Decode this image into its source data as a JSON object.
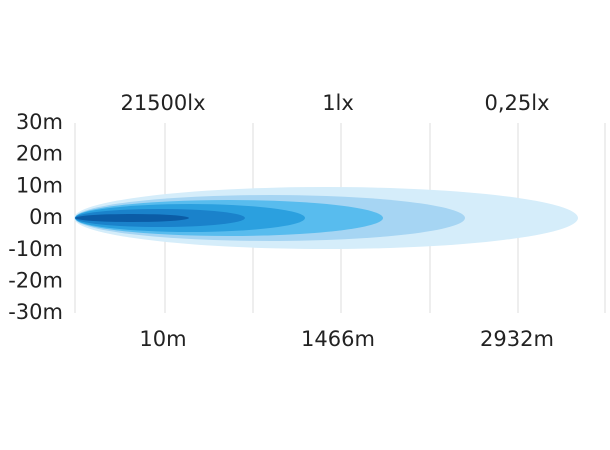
{
  "lux_labels": [
    "21500lx",
    "1lx",
    "0,25lx"
  ],
  "y_labels": [
    "30m",
    "20m",
    "10m",
    "0m",
    "-10m",
    "-20m",
    "-30m"
  ],
  "distance_labels": [
    "10m",
    "1466m",
    "2932m"
  ]
}
